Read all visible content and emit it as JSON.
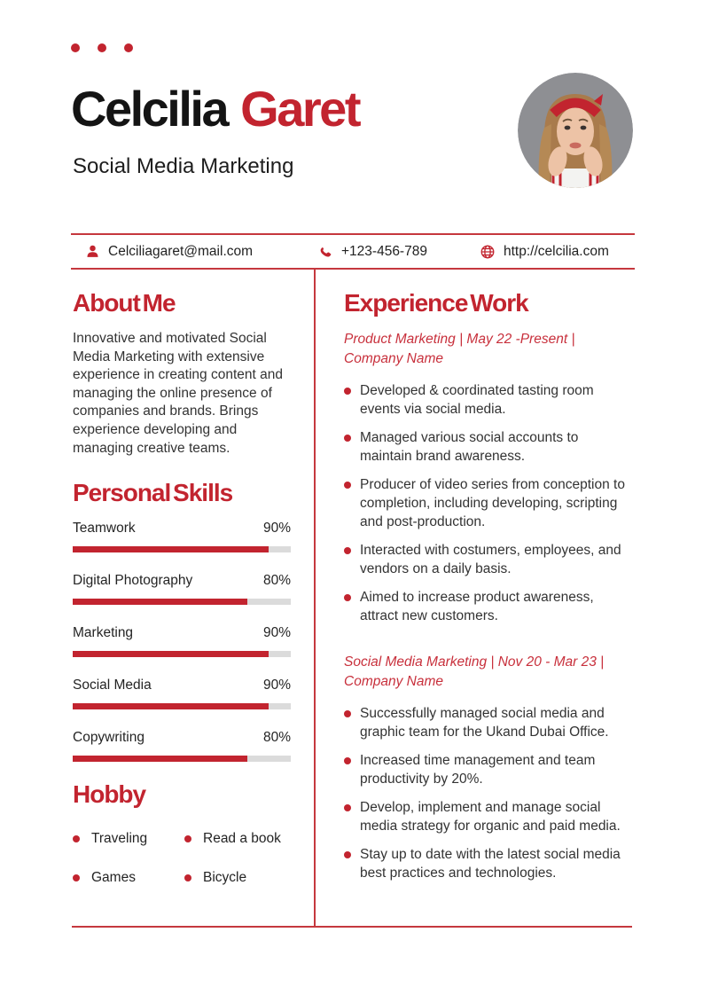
{
  "colors": {
    "accent": "#C2242F",
    "line": "#C5383E",
    "bar_track": "#DBDBDB"
  },
  "header": {
    "first_name": "Celcilia",
    "last_name": "Garet",
    "subtitle": "Social Media Marketing"
  },
  "contact": {
    "email": "Celciliagaret@mail.com",
    "phone": "+123-456-789",
    "website": "http://celcilia.com",
    "icons": [
      "person-icon",
      "phone-icon",
      "globe-icon"
    ]
  },
  "about": {
    "heading": "About Me",
    "text": "Innovative and motivated Social Media Marketing with extensive experience in creating content and managing the online presence of companies and brands. Brings experience developing and managing creative teams."
  },
  "skills": {
    "heading": "Personal Skills",
    "items": [
      {
        "label": "Teamwork",
        "value": "90%",
        "percent": 90
      },
      {
        "label": "Digital Photography",
        "value": "80%",
        "percent": 80
      },
      {
        "label": "Marketing",
        "value": "90%",
        "percent": 90
      },
      {
        "label": "Social Media",
        "value": "90%",
        "percent": 90
      },
      {
        "label": "Copywriting",
        "value": "80%",
        "percent": 80
      }
    ]
  },
  "hobby": {
    "heading": "Hobby",
    "items": [
      "Traveling",
      "Read a book",
      "Games",
      "Bicycle"
    ]
  },
  "experience": {
    "heading": "Experience Work",
    "jobs": [
      {
        "meta_lines": [
          "Product Marketing | May 22 -Present |",
          "Company Name"
        ],
        "bullets": [
          "Developed & coordinated tasting room events via social media.",
          "Managed various social accounts to maintain brand awareness.",
          "Producer of video series from conception to completion, including developing, scripting and post-production.",
          "Interacted with costumers, employees, and vendors on a daily basis.",
          "Aimed to increase product awareness, attract new customers."
        ]
      },
      {
        "meta_lines": [
          "Social Media Marketing | Nov 20 - Mar 23 |",
          "Company Name"
        ],
        "bullets": [
          "Successfully managed social media and graphic team for the Ukand Dubai Office.",
          "Increased time management and team productivity by 20%.",
          "Develop, implement and manage social media strategy for organic and paid media.",
          "Stay up to date with the latest social media best practices and technologies."
        ]
      }
    ]
  }
}
